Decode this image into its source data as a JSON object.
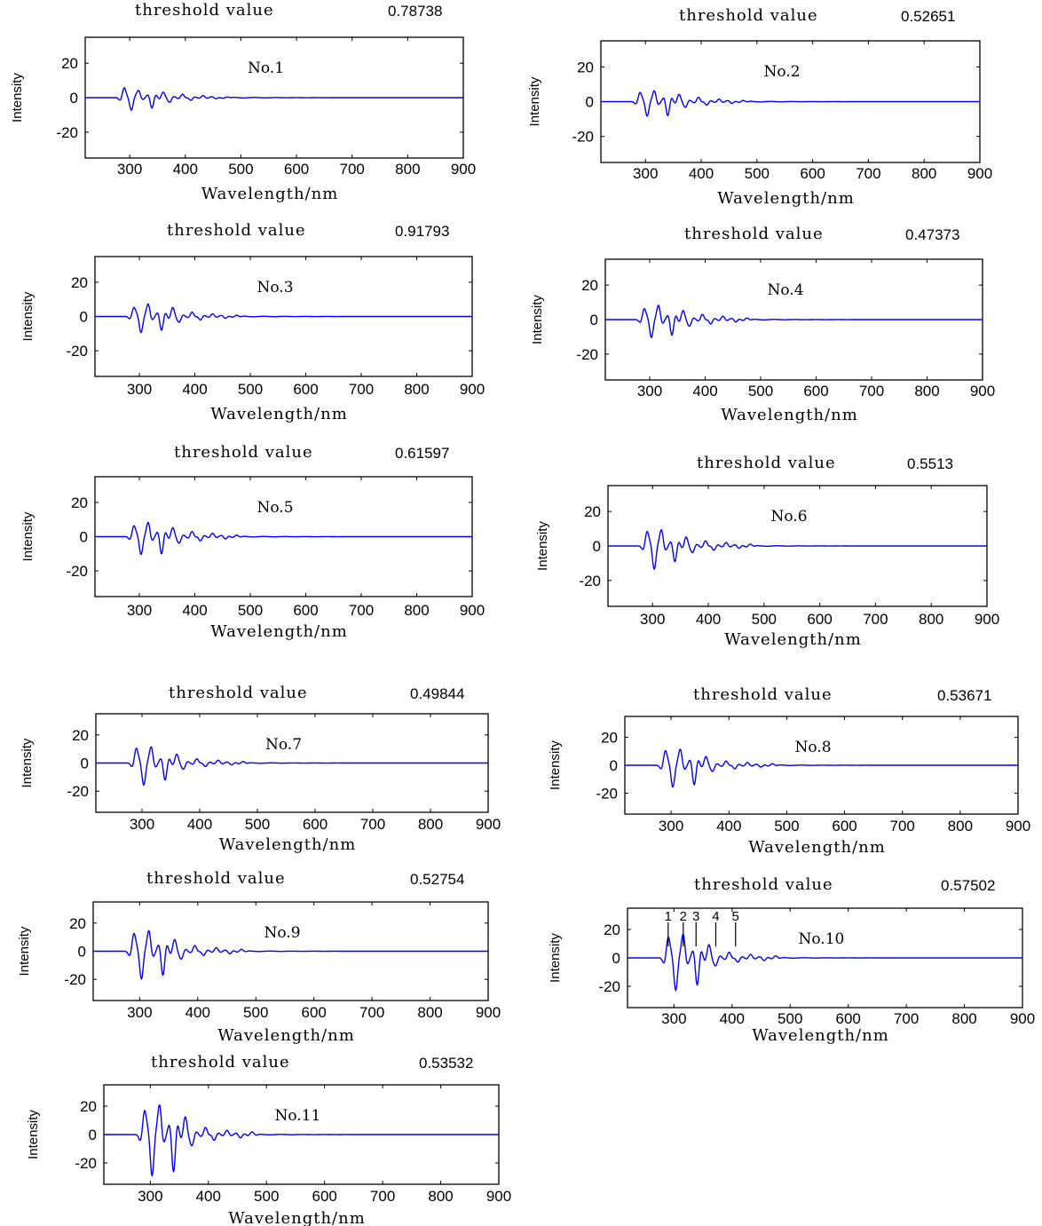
{
  "figure": {
    "threshold_label": "threshold value",
    "xlabel": "Wavelength/nm",
    "ylabel": "Intensity",
    "line_color": "#0000ff",
    "axis_color": "#000000"
  },
  "chart_data": [
    {
      "type": "line",
      "title": "No.1",
      "threshold": "0.78738",
      "xlabel": "Wavelength/nm",
      "ylabel": "Intensity",
      "xlim": [
        220,
        900
      ],
      "ylim": [
        -35,
        35
      ],
      "xticks": [
        300,
        400,
        500,
        600,
        700,
        800,
        900
      ],
      "yticks": [
        20,
        0,
        -20
      ],
      "amps": [
        5.5,
        7,
        4,
        6,
        3,
        2.5,
        2,
        1.5,
        1.2,
        0.8,
        0.5
      ]
    },
    {
      "type": "line",
      "title": "No.2",
      "threshold": "0.52651",
      "xlabel": "Wavelength/nm",
      "ylabel": "Intensity",
      "xlim": [
        220,
        900
      ],
      "ylim": [
        -35,
        35
      ],
      "xticks": [
        300,
        400,
        500,
        600,
        700,
        800,
        900
      ],
      "yticks": [
        20,
        0,
        -20
      ],
      "amps": [
        5,
        8,
        6,
        8,
        4,
        3,
        2.5,
        2,
        1.5,
        1.2,
        0.8
      ]
    },
    {
      "type": "line",
      "title": "No.3",
      "threshold": "0.91793",
      "xlabel": "Wavelength/nm",
      "ylabel": "Intensity",
      "xlim": [
        220,
        900
      ],
      "ylim": [
        -35,
        35
      ],
      "xticks": [
        300,
        400,
        500,
        600,
        700,
        800,
        900
      ],
      "yticks": [
        20,
        0,
        -20
      ],
      "amps": [
        5,
        9,
        7,
        8,
        5,
        3,
        2.5,
        2,
        1.5,
        1.2,
        0.8
      ]
    },
    {
      "type": "line",
      "title": "No.4",
      "threshold": "0.47373",
      "xlabel": "Wavelength/nm",
      "ylabel": "Intensity",
      "xlim": [
        220,
        900
      ],
      "ylim": [
        -35,
        35
      ],
      "xticks": [
        300,
        400,
        500,
        600,
        700,
        800,
        900
      ],
      "yticks": [
        20,
        0,
        -20
      ],
      "amps": [
        6,
        10,
        8,
        9,
        5,
        3.5,
        3,
        2.5,
        2,
        1.5,
        1
      ]
    },
    {
      "type": "line",
      "title": "No.5",
      "threshold": "0.61597",
      "xlabel": "Wavelength/nm",
      "ylabel": "Intensity",
      "xlim": [
        220,
        900
      ],
      "ylim": [
        -35,
        35
      ],
      "xticks": [
        300,
        400,
        500,
        600,
        700,
        800,
        900
      ],
      "yticks": [
        20,
        0,
        -20
      ],
      "amps": [
        6,
        10,
        8,
        10,
        5,
        3.5,
        3,
        2.5,
        2,
        1.5,
        1
      ]
    },
    {
      "type": "line",
      "title": "No.6",
      "threshold": "0.5513",
      "xlabel": "Wavelength/nm",
      "ylabel": "Intensity",
      "xlim": [
        220,
        900
      ],
      "ylim": [
        -35,
        35
      ],
      "xticks": [
        300,
        400,
        500,
        600,
        700,
        800,
        900
      ],
      "yticks": [
        20,
        0,
        -20
      ],
      "amps": [
        8,
        13,
        9,
        9,
        5,
        3.5,
        3,
        2.5,
        2,
        1.5,
        1.2
      ]
    },
    {
      "type": "line",
      "title": "No.7",
      "threshold": "0.49844",
      "xlabel": "Wavelength/nm",
      "ylabel": "Intensity",
      "xlim": [
        220,
        900
      ],
      "ylim": [
        -35,
        35
      ],
      "xticks": [
        300,
        400,
        500,
        600,
        700,
        800,
        900
      ],
      "yticks": [
        20,
        0,
        -20
      ],
      "amps": [
        10,
        15,
        11,
        12,
        6,
        4,
        3,
        2.5,
        2,
        1.5,
        1.2
      ]
    },
    {
      "type": "line",
      "title": "No.8",
      "threshold": "0.53671",
      "xlabel": "Wavelength/nm",
      "ylabel": "Intensity",
      "xlim": [
        220,
        900
      ],
      "ylim": [
        -35,
        35
      ],
      "xticks": [
        300,
        400,
        500,
        600,
        700,
        800,
        900
      ],
      "yticks": [
        20,
        0,
        -20
      ],
      "amps": [
        10,
        15,
        11,
        14,
        6,
        4,
        3,
        2.5,
        2,
        1.5,
        1.2
      ]
    },
    {
      "type": "line",
      "title": "No.9",
      "threshold": "0.52754",
      "xlabel": "Wavelength/nm",
      "ylabel": "Intensity",
      "xlim": [
        220,
        900
      ],
      "ylim": [
        -35,
        35
      ],
      "xticks": [
        300,
        400,
        500,
        600,
        700,
        800,
        900
      ],
      "yticks": [
        20,
        0,
        -20
      ],
      "amps": [
        12,
        19,
        14,
        17,
        8,
        5,
        4,
        3,
        2.5,
        2,
        1.5
      ]
    },
    {
      "type": "line",
      "title": "No.10",
      "threshold": "0.57502",
      "xlabel": "Wavelength/nm",
      "ylabel": "Intensity",
      "xlim": [
        220,
        900
      ],
      "ylim": [
        -35,
        35
      ],
      "xticks": [
        300,
        400,
        500,
        600,
        700,
        800,
        900
      ],
      "yticks": [
        20,
        0,
        -20
      ],
      "amps": [
        14,
        22,
        16,
        19,
        9,
        5,
        4,
        3,
        2.5,
        2,
        1.5
      ],
      "peak_labels": [
        {
          "text": "1",
          "x": 290
        },
        {
          "text": "2",
          "x": 316
        },
        {
          "text": "3",
          "x": 338
        },
        {
          "text": "4",
          "x": 372
        },
        {
          "text": "5",
          "x": 406
        }
      ]
    },
    {
      "type": "line",
      "title": "No.11",
      "threshold": "0.53532",
      "xlabel": "Wavelength/nm",
      "ylabel": "Intensity",
      "xlim": [
        220,
        900
      ],
      "ylim": [
        -35,
        35
      ],
      "xticks": [
        300,
        400,
        500,
        600,
        700,
        800,
        900
      ],
      "yticks": [
        20,
        0,
        -20
      ],
      "amps": [
        16,
        28,
        20,
        26,
        12,
        7,
        5,
        4,
        3,
        2.5,
        2
      ]
    }
  ]
}
